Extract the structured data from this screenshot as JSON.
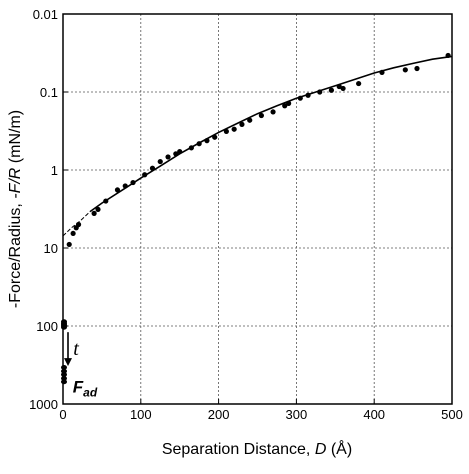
{
  "chart_data": {
    "type": "scatter",
    "xlabel": "Separation Distance, D (Å)",
    "xlabel_parts": {
      "prefix": "Separation Distance, ",
      "italic": "D",
      "suffix": " (Å)"
    },
    "ylabel": "-Force/Radius, -F/R (mN/m)",
    "ylabel_parts": {
      "prefix": "-Force/Radius, ",
      "italic": "-F/R",
      "suffix": " (mN/m)"
    },
    "xlim": [
      0,
      500
    ],
    "ylim": [
      0.01,
      1000
    ],
    "y_scale": "log",
    "y_inverted": true,
    "grid": true,
    "x_ticks": [
      0,
      100,
      200,
      300,
      400,
      500
    ],
    "x_tick_labels": [
      "0",
      "100",
      "200",
      "300",
      "400",
      "500"
    ],
    "y_ticks": [
      0.01,
      0.1,
      1,
      10,
      100,
      1000
    ],
    "y_tick_labels": [
      "0.01",
      "0.1",
      "1",
      "10",
      "100",
      "1000"
    ],
    "series": [
      {
        "kind": "points",
        "points": [
          [
            8,
            9.0
          ],
          [
            13,
            6.5
          ],
          [
            17,
            5.5
          ],
          [
            20,
            5.0
          ],
          [
            40,
            3.6
          ],
          [
            45,
            3.2
          ],
          [
            55,
            2.5
          ],
          [
            70,
            1.8
          ],
          [
            80,
            1.6
          ],
          [
            90,
            1.45
          ],
          [
            105,
            1.15
          ],
          [
            115,
            0.95
          ],
          [
            125,
            0.78
          ],
          [
            135,
            0.68
          ],
          [
            145,
            0.62
          ],
          [
            150,
            0.58
          ],
          [
            165,
            0.52
          ],
          [
            175,
            0.46
          ],
          [
            185,
            0.42
          ],
          [
            195,
            0.38
          ],
          [
            210,
            0.32
          ],
          [
            220,
            0.3
          ],
          [
            230,
            0.26
          ],
          [
            240,
            0.23
          ],
          [
            255,
            0.2
          ],
          [
            270,
            0.18
          ],
          [
            285,
            0.15
          ],
          [
            290,
            0.14
          ],
          [
            305,
            0.12
          ],
          [
            315,
            0.11
          ],
          [
            330,
            0.1
          ],
          [
            345,
            0.095
          ],
          [
            355,
            0.085
          ],
          [
            360,
            0.09
          ],
          [
            380,
            0.078
          ],
          [
            410,
            0.056
          ],
          [
            440,
            0.052
          ],
          [
            455,
            0.05
          ],
          [
            495,
            0.034
          ]
        ]
      },
      {
        "kind": "fit-solid",
        "points": [
          [
            35,
            3.4
          ],
          [
            50,
            2.66
          ],
          [
            75,
            1.84
          ],
          [
            100,
            1.27
          ],
          [
            125,
            0.89
          ],
          [
            150,
            0.62
          ],
          [
            175,
            0.45
          ],
          [
            200,
            0.33
          ],
          [
            225,
            0.25
          ],
          [
            250,
            0.19
          ],
          [
            275,
            0.15
          ],
          [
            300,
            0.12
          ],
          [
            325,
            0.1
          ],
          [
            350,
            0.083
          ],
          [
            375,
            0.069
          ],
          [
            400,
            0.057
          ],
          [
            425,
            0.049
          ],
          [
            450,
            0.043
          ],
          [
            475,
            0.038
          ],
          [
            500,
            0.035
          ]
        ]
      },
      {
        "kind": "fit-dashed",
        "points": [
          [
            0,
            7.0
          ],
          [
            12,
            5.4
          ],
          [
            22,
            4.5
          ],
          [
            35,
            3.4
          ]
        ]
      },
      {
        "kind": "adhesion-points",
        "points": [
          [
            0,
            88
          ],
          [
            0,
            92
          ],
          [
            0,
            96
          ],
          [
            0,
            100
          ],
          [
            0,
            104
          ],
          [
            0,
            340
          ],
          [
            0,
            380
          ],
          [
            0,
            420
          ],
          [
            0,
            470
          ],
          [
            0,
            520
          ]
        ]
      }
    ],
    "annotations": [
      {
        "text": "t",
        "style": "italic",
        "x": 8,
        "y": 210
      },
      {
        "text": "F",
        "subscript": "ad",
        "style": "bold-italic",
        "x": 10,
        "y": 600
      }
    ]
  }
}
